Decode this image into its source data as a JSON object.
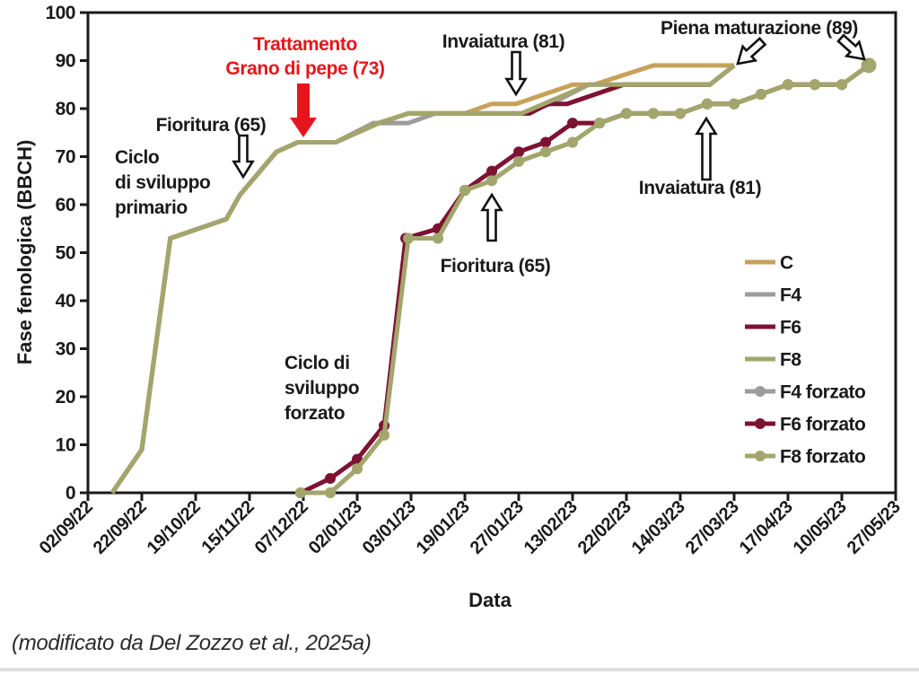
{
  "colors": {
    "c_tan": "#C8A15A",
    "f4_gray": "#9C9C9C",
    "f6_maroon": "#7D1233",
    "f8_olive": "#A3A66C",
    "annotation_red": "#E8141C",
    "ink": "#1A1A1A"
  },
  "chart_data": {
    "type": "line",
    "xlabel": "Data",
    "ylabel": "Fase fenologica (BBCH)",
    "caption": "(modificato da Del Zozzo et al., 2025a)",
    "ylim": [
      0,
      100
    ],
    "yticks": [
      0,
      10,
      20,
      30,
      40,
      50,
      60,
      70,
      80,
      90,
      100
    ],
    "x_tick_labels": [
      "02/09/22",
      "22/09/22",
      "19/10/22",
      "15/11/22",
      "07/12/22",
      "02/01/23",
      "03/01/23",
      "19/01/23",
      "27/01/23",
      "13/02/23",
      "22/02/23",
      "14/03/23",
      "27/03/23",
      "17/04/23",
      "10/05/23",
      "27/05/23"
    ],
    "grid": false,
    "series": [
      {
        "name": "F4",
        "color": "#9C9C9C",
        "markers": false,
        "points": [
          [
            0.45,
            0
          ],
          [
            1,
            9
          ],
          [
            1.53,
            53
          ],
          [
            2.57,
            57
          ],
          [
            2.82,
            62
          ],
          [
            3.5,
            71
          ],
          [
            3.9,
            73
          ],
          [
            4.6,
            73
          ],
          [
            5.3,
            77
          ],
          [
            5.95,
            77
          ],
          [
            6.45,
            79
          ],
          [
            8.05,
            79
          ],
          [
            8.6,
            81
          ],
          [
            9.3,
            85
          ],
          [
            11.55,
            85
          ],
          [
            12,
            89
          ]
        ]
      },
      {
        "name": "F6",
        "color": "#7D1233",
        "markers": false,
        "points": [
          [
            0.45,
            0
          ],
          [
            1,
            9
          ],
          [
            1.53,
            53
          ],
          [
            2.57,
            57
          ],
          [
            2.82,
            62
          ],
          [
            3.5,
            71
          ],
          [
            3.9,
            73
          ],
          [
            4.6,
            73
          ],
          [
            5.4,
            77
          ],
          [
            5.95,
            79
          ],
          [
            8.2,
            79
          ],
          [
            8.55,
            81
          ],
          [
            8.9,
            81
          ],
          [
            9.95,
            85
          ],
          [
            11.55,
            85
          ],
          [
            12,
            89
          ]
        ]
      },
      {
        "name": "C",
        "color": "#C8A15A",
        "markers": false,
        "points": [
          [
            0.45,
            0
          ],
          [
            1,
            9
          ],
          [
            1.53,
            53
          ],
          [
            2.57,
            57
          ],
          [
            2.82,
            62
          ],
          [
            3.5,
            71
          ],
          [
            3.9,
            73
          ],
          [
            4.6,
            73
          ],
          [
            5.4,
            77
          ],
          [
            5.95,
            79
          ],
          [
            7.0,
            79
          ],
          [
            7.5,
            81
          ],
          [
            7.95,
            81
          ],
          [
            9.0,
            85
          ],
          [
            9.4,
            85
          ],
          [
            10.5,
            89
          ],
          [
            12,
            89
          ]
        ]
      },
      {
        "name": "F8",
        "color": "#A3A66C",
        "markers": false,
        "points": [
          [
            0.45,
            0
          ],
          [
            1,
            9
          ],
          [
            1.53,
            53
          ],
          [
            2.57,
            57
          ],
          [
            2.82,
            62
          ],
          [
            3.5,
            71
          ],
          [
            3.9,
            73
          ],
          [
            4.6,
            73
          ],
          [
            5.4,
            77
          ],
          [
            5.95,
            79
          ],
          [
            8.05,
            79
          ],
          [
            9.3,
            85
          ],
          [
            11.55,
            85
          ],
          [
            12,
            89
          ]
        ]
      },
      {
        "name": "F4 forzato",
        "color": "#9C9C9C",
        "markers": true,
        "points": [
          [
            3.95,
            0
          ],
          [
            4.5,
            0
          ],
          [
            5,
            5
          ],
          [
            5.5,
            12
          ],
          [
            5.95,
            53
          ],
          [
            6.5,
            53
          ],
          [
            7,
            63
          ],
          [
            7.5,
            65
          ],
          [
            8,
            69
          ],
          [
            8.5,
            71
          ],
          [
            9,
            73
          ],
          [
            9.5,
            77
          ],
          [
            10,
            79
          ],
          [
            10.5,
            79
          ],
          [
            11,
            79
          ],
          [
            11.5,
            81
          ],
          [
            12,
            81
          ],
          [
            12.5,
            83
          ],
          [
            13,
            85
          ],
          [
            13.5,
            85
          ],
          [
            14,
            85
          ],
          [
            14.5,
            89
          ]
        ]
      },
      {
        "name": "F6 forzato",
        "color": "#7D1233",
        "markers": true,
        "points": [
          [
            3.95,
            0
          ],
          [
            4.5,
            3
          ],
          [
            5,
            7
          ],
          [
            5.5,
            14
          ],
          [
            5.9,
            53
          ],
          [
            6.5,
            55
          ],
          [
            7,
            63
          ],
          [
            7.5,
            67
          ],
          [
            8,
            71
          ],
          [
            8.5,
            73
          ],
          [
            9,
            77
          ],
          [
            9.5,
            77
          ],
          [
            10,
            79
          ],
          [
            10.5,
            79
          ],
          [
            11,
            79
          ],
          [
            11.5,
            81
          ],
          [
            12,
            81
          ],
          [
            12.5,
            83
          ],
          [
            13,
            85
          ],
          [
            13.5,
            85
          ],
          [
            14,
            85
          ],
          [
            14.5,
            89
          ]
        ]
      },
      {
        "name": "F8 forzato",
        "color": "#A3A66C",
        "markers": true,
        "big_end_marker": true,
        "points": [
          [
            3.95,
            0
          ],
          [
            4.5,
            0
          ],
          [
            5,
            5
          ],
          [
            5.5,
            12
          ],
          [
            5.95,
            53
          ],
          [
            6.5,
            53
          ],
          [
            7,
            63
          ],
          [
            7.5,
            65
          ],
          [
            8,
            69
          ],
          [
            8.5,
            71
          ],
          [
            9,
            73
          ],
          [
            9.5,
            77
          ],
          [
            10,
            79
          ],
          [
            10.5,
            79
          ],
          [
            11,
            79
          ],
          [
            11.5,
            81
          ],
          [
            12,
            81
          ],
          [
            12.5,
            83
          ],
          [
            13,
            85
          ],
          [
            13.5,
            85
          ],
          [
            14,
            85
          ],
          [
            14.5,
            89
          ]
        ]
      }
    ],
    "legend": {
      "position": "inside-right",
      "entries": [
        {
          "label": "C",
          "color": "#C8A15A",
          "marker": false
        },
        {
          "label": "F4",
          "color": "#9C9C9C",
          "marker": false
        },
        {
          "label": "F6",
          "color": "#7D1233",
          "marker": false
        },
        {
          "label": "F8",
          "color": "#A3A66C",
          "marker": false
        },
        {
          "label": "F4 forzato",
          "color": "#9C9C9C",
          "marker": true
        },
        {
          "label": "F6 forzato",
          "color": "#7D1233",
          "marker": true
        },
        {
          "label": "F8 forzato",
          "color": "#A3A66C",
          "marker": true
        }
      ]
    },
    "annotations": {
      "trattamento": [
        "Trattamento",
        "Grano di pepe (73)"
      ],
      "fioritura_top": "Fioritura (65)",
      "ciclo_primario": [
        "Ciclo",
        "di sviluppo",
        "primario"
      ],
      "invaiatura_top": "Invaiatura (81)",
      "piena_maturazione": "Piena maturazione (89)",
      "fioritura_bottom": "Fioritura (65)",
      "invaiatura_right": "Invaiatura (81)",
      "ciclo_forzato": [
        "Ciclo di",
        "sviluppo",
        "forzato"
      ]
    },
    "arrows": [
      {
        "name": "fioritura-top-arrow",
        "style": "outline",
        "tip": [
          271,
          197
        ],
        "angle": 90,
        "length": 46
      },
      {
        "name": "trattamento-arrow",
        "style": "solid",
        "color": "#E8141C",
        "tip": [
          338,
          153
        ],
        "angle": 90,
        "length": 60
      },
      {
        "name": "invaiatura-top-arrow",
        "style": "outline",
        "tip": [
          575,
          105
        ],
        "angle": 90,
        "length": 47
      },
      {
        "name": "piena-maturazione-left-arrow",
        "style": "outline",
        "tip": [
          822,
          71
        ],
        "angle": 138,
        "length": 37
      },
      {
        "name": "piena-maturazione-right-arrow",
        "style": "outline",
        "tip": [
          963,
          66
        ],
        "angle": 42,
        "length": 35
      },
      {
        "name": "fioritura-bottom-arrow",
        "style": "outline",
        "tip": [
          548,
          217
        ],
        "angle": 270,
        "length": 51
      },
      {
        "name": "invaiatura-right-arrow",
        "style": "outline",
        "tip": [
          787,
          132
        ],
        "angle": 270,
        "length": 68
      }
    ]
  }
}
